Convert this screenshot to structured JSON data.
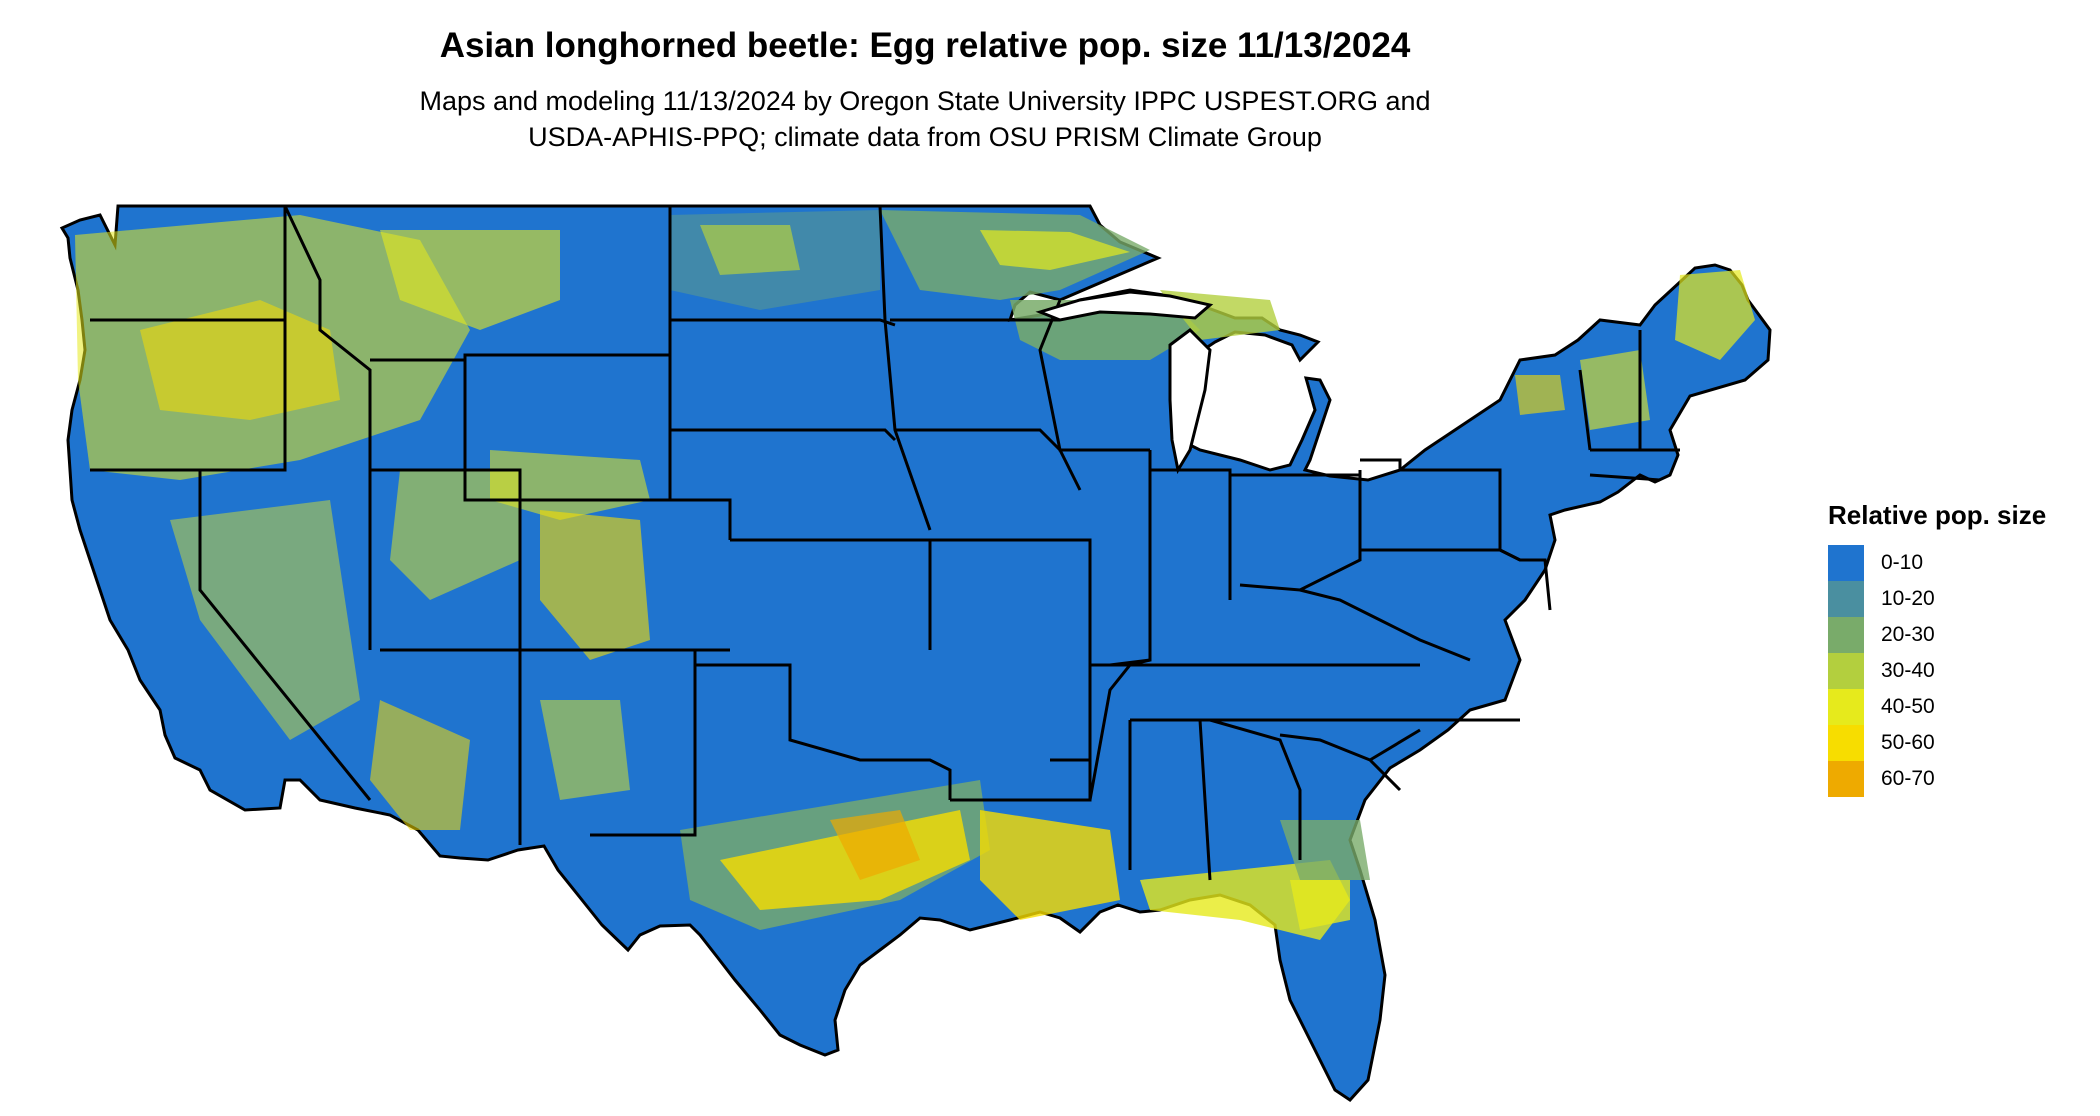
{
  "title": "Asian longhorned beetle: Egg relative pop. size 11/13/2024",
  "subtitle_line1": "Maps and modeling 11/13/2024 by Oregon State University IPPC USPEST.ORG and",
  "subtitle_line2": "USDA-APHIS-PPQ; climate data from OSU PRISM Climate Group",
  "legend": {
    "title": "Relative pop. size",
    "items": [
      {
        "label": "0-10",
        "color": "#1f74cf"
      },
      {
        "label": "10-20",
        "color": "#4a8fa0"
      },
      {
        "label": "20-30",
        "color": "#79ab6a"
      },
      {
        "label": "30-40",
        "color": "#b3cf3e"
      },
      {
        "label": "40-50",
        "color": "#e6ea1c"
      },
      {
        "label": "50-60",
        "color": "#f7dd00"
      },
      {
        "label": "60-70",
        "color": "#eeaa00"
      }
    ]
  },
  "map": {
    "region": "contiguous-united-states",
    "base_class": "0-10",
    "boundary_color": "#000000"
  }
}
